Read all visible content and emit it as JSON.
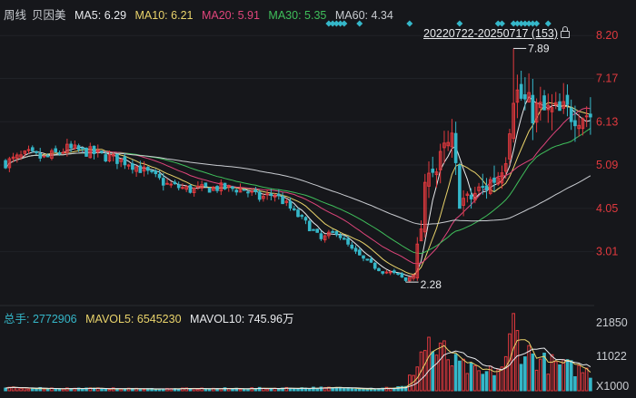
{
  "price_legend": {
    "period": "周线",
    "name": "贝因美",
    "ma5": {
      "label": "MA5:",
      "value": "6.29",
      "color": "#e8eaed"
    },
    "ma10": {
      "label": "MA10:",
      "value": "6.21",
      "color": "#e9d36b"
    },
    "ma20": {
      "label": "MA20:",
      "value": "5.91",
      "color": "#e0457b"
    },
    "ma30": {
      "label": "MA30:",
      "value": "5.35",
      "color": "#3fbf5b"
    },
    "ma60": {
      "label": "MA60:",
      "value": "4.34",
      "color": "#c9ccd1"
    }
  },
  "range_label": "20220722-20250717 (153)",
  "price_axis": [
    "8.20",
    "7.17",
    "6.13",
    "5.09",
    "4.05",
    "3.01"
  ],
  "high_marker": "7.89",
  "low_marker": "2.28",
  "volume_legend": {
    "total": {
      "label": "总手:",
      "value": "2772906",
      "color": "#35b7c9"
    },
    "mavol5": {
      "label": "MAVOL5:",
      "value": "6545230",
      "color": "#e9d36b"
    },
    "mavol10": {
      "label": "MAVOL10:",
      "value": "745.96万",
      "color": "#e8eaed"
    }
  },
  "volume_axis": [
    "21850",
    "11022",
    "X1000"
  ],
  "colors": {
    "up": "#e0393e",
    "down": "#35b7c9",
    "background": "#16171b",
    "event_marker": "#35b7c9"
  },
  "chart_data": {
    "type": "candlestick",
    "period": "weekly",
    "range": "20220722-20250717",
    "count": 153,
    "y_ticks": [
      8.2,
      7.17,
      6.13,
      5.09,
      4.05,
      3.01
    ],
    "ylim": [
      2.0,
      8.4
    ],
    "high": 7.89,
    "low": 2.28,
    "ma_last": {
      "MA5": 6.29,
      "MA10": 6.21,
      "MA20": 5.91,
      "MA30": 5.35,
      "MA60": 4.34
    },
    "volume_ticks": [
      21850,
      11022
    ],
    "volume_unit": "X1000",
    "volume_last": 2772906,
    "mavol5_last": 6545230,
    "mavol10_last": "745.96万",
    "event_marker_weeks": [
      84,
      85,
      86,
      87,
      88,
      92,
      105,
      118,
      128,
      129,
      132,
      133,
      134,
      135,
      136,
      137,
      138,
      141
    ],
    "price_anchors": [
      [
        0,
        5.15
      ],
      [
        6,
        5.35
      ],
      [
        10,
        5.25
      ],
      [
        16,
        5.48
      ],
      [
        22,
        5.4
      ],
      [
        26,
        5.3
      ],
      [
        32,
        5.15
      ],
      [
        38,
        4.85
      ],
      [
        42,
        4.62
      ],
      [
        48,
        4.5
      ],
      [
        56,
        4.55
      ],
      [
        62,
        4.5
      ],
      [
        66,
        4.3
      ],
      [
        70,
        4.4
      ],
      [
        74,
        4.05
      ],
      [
        78,
        3.7
      ],
      [
        82,
        3.3
      ],
      [
        86,
        3.5
      ],
      [
        90,
        3.05
      ],
      [
        94,
        2.75
      ],
      [
        98,
        2.55
      ],
      [
        102,
        2.45
      ],
      [
        104,
        2.32
      ],
      [
        106,
        2.5
      ],
      [
        108,
        3.6
      ],
      [
        110,
        5.2
      ],
      [
        112,
        4.95
      ],
      [
        114,
        5.4
      ],
      [
        116,
        5.6
      ],
      [
        118,
        4.3
      ],
      [
        120,
        4.2
      ],
      [
        122,
        4.4
      ],
      [
        124,
        4.5
      ],
      [
        126,
        4.7
      ],
      [
        128,
        4.85
      ],
      [
        130,
        5.4
      ],
      [
        132,
        6.9
      ],
      [
        134,
        6.7
      ],
      [
        136,
        6.45
      ],
      [
        140,
        6.35
      ],
      [
        144,
        6.3
      ],
      [
        148,
        6.4
      ],
      [
        152,
        6.3
      ]
    ],
    "volume_anchors": [
      [
        0,
        900
      ],
      [
        20,
        700
      ],
      [
        40,
        600
      ],
      [
        60,
        700
      ],
      [
        80,
        900
      ],
      [
        95,
        800
      ],
      [
        104,
        1200
      ],
      [
        108,
        12000
      ],
      [
        110,
        16000
      ],
      [
        112,
        11000
      ],
      [
        114,
        12500
      ],
      [
        116,
        9000
      ],
      [
        120,
        7000
      ],
      [
        124,
        5000
      ],
      [
        128,
        7000
      ],
      [
        130,
        9000
      ],
      [
        132,
        21500
      ],
      [
        134,
        14000
      ],
      [
        136,
        12000
      ],
      [
        140,
        9000
      ],
      [
        144,
        8000
      ],
      [
        148,
        7000
      ],
      [
        152,
        6000
      ]
    ]
  }
}
